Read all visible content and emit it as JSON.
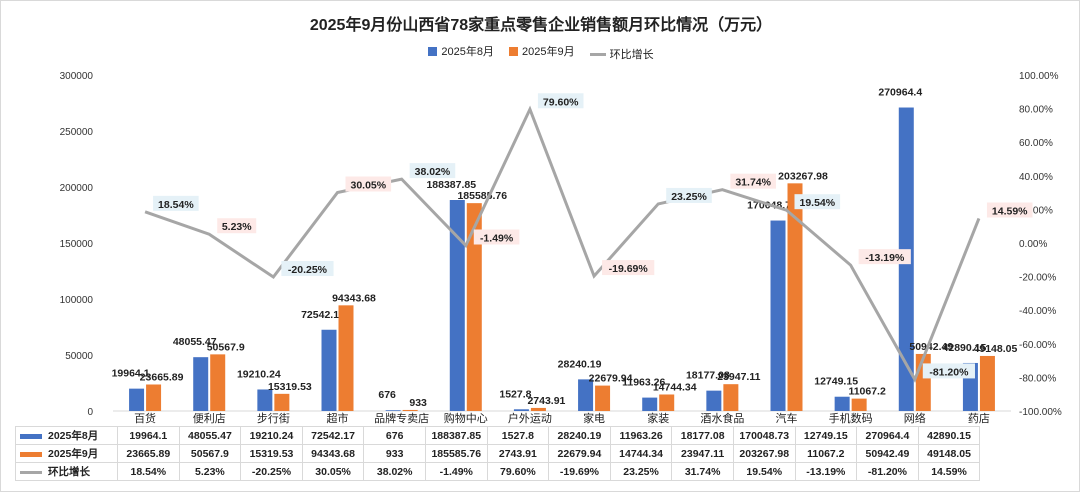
{
  "chart_data": {
    "type": "bar",
    "title": "2025年9月份山西省78家重点零售企业销售额月环比情况（万元）",
    "categories": [
      "百货",
      "便利店",
      "步行街",
      "超市",
      "品牌专卖店",
      "购物中心",
      "户外运动",
      "家电",
      "家装",
      "酒水食品",
      "汽车",
      "手机数码",
      "网络",
      "药店"
    ],
    "series": [
      {
        "name": "2025年8月",
        "type": "bar",
        "axis": "left",
        "color": "#4472c4",
        "values": [
          19964.1,
          48055.47,
          19210.24,
          72542.17,
          676,
          188387.85,
          1527.8,
          28240.19,
          11963.26,
          18177.08,
          170048.73,
          12749.15,
          270964.4,
          42890.15
        ],
        "labels": [
          "19964.1",
          "48055.47",
          "19210.24",
          "72542.17",
          "676",
          "188387.85",
          "1527.8",
          "28240.19",
          "11963.26",
          "18177.08",
          "170048.73",
          "12749.15",
          "270964.4",
          "42890.15"
        ]
      },
      {
        "name": "2025年9月",
        "type": "bar",
        "axis": "left",
        "color": "#ed7d31",
        "values": [
          23665.89,
          50567.9,
          15319.53,
          94343.68,
          933,
          185585.76,
          2743.91,
          22679.94,
          14744.34,
          23947.11,
          203267.98,
          11067.2,
          50942.49,
          49148.05
        ],
        "labels": [
          "23665.89",
          "50567.9",
          "15319.53",
          "94343.68",
          "933",
          "185585.76",
          "2743.91",
          "22679.94",
          "14744.34",
          "23947.11",
          "203267.98",
          "11067.2",
          "50942.49",
          "49148.05"
        ]
      },
      {
        "name": "环比增长",
        "type": "line",
        "axis": "right",
        "color": "#a6a6a6",
        "values": [
          18.54,
          5.23,
          -20.25,
          30.05,
          38.02,
          -1.49,
          79.6,
          -19.69,
          23.25,
          31.74,
          19.54,
          -13.19,
          -81.2,
          14.59
        ],
        "labels": [
          "18.54%",
          "5.23%",
          "-20.25%",
          "30.05%",
          "38.02%",
          "-1.49%",
          "79.60%",
          "-19.69%",
          "23.25%",
          "31.74%",
          "19.54%",
          "-13.19%",
          "-81.20%",
          "14.59%"
        ]
      }
    ],
    "ylim": [
      0,
      300000
    ],
    "y2lim": [
      -100,
      100
    ],
    "yticks": [
      "0",
      "50000",
      "100000",
      "150000",
      "200000",
      "250000",
      "300000"
    ],
    "y2ticks": [
      "-100.00%",
      "-80.00%",
      "-60.00%",
      "-40.00%",
      "-20.00%",
      "0.00%",
      "20.00%",
      "40.00%",
      "60.00%",
      "80.00%",
      "100.00%"
    ],
    "legend": "top",
    "grid": false
  }
}
